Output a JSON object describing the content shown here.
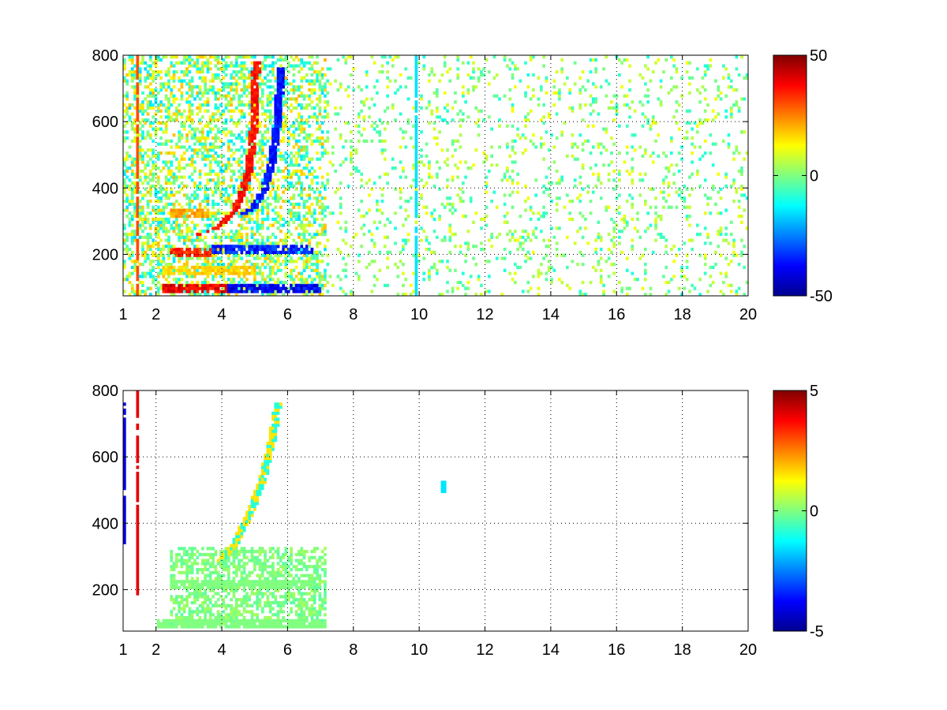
{
  "chart_data": [
    {
      "type": "heatmap",
      "title": "",
      "xlabel": "",
      "ylabel": "",
      "xlim": [
        1,
        20
      ],
      "ylim": [
        75,
        800
      ],
      "grid": true,
      "colormap": "jet",
      "xticks": [
        1,
        2,
        4,
        6,
        8,
        10,
        12,
        14,
        16,
        18,
        20
      ],
      "xtick_labels": [
        "1",
        "2",
        "4",
        "6",
        "8",
        "10",
        "12",
        "14",
        "16",
        "18",
        "20"
      ],
      "yticks": [
        200,
        400,
        600,
        800
      ],
      "ytick_labels": [
        "200",
        "400",
        "600",
        "800"
      ],
      "colorbar": {
        "min": -50,
        "max": 50,
        "ticks": [
          50,
          0,
          -50
        ],
        "tick_labels": [
          "50",
          "0",
          "-50"
        ]
      },
      "features": [
        {
          "kind": "curve",
          "sign": "positive",
          "value": 40,
          "points": [
            [
              3.3,
              260
            ],
            [
              3.8,
              280
            ],
            [
              4.3,
              320
            ],
            [
              4.6,
              380
            ],
            [
              4.8,
              450
            ],
            [
              4.95,
              550
            ],
            [
              5.0,
              650
            ],
            [
              5.05,
              780
            ]
          ]
        },
        {
          "kind": "curve",
          "sign": "negative",
          "value": -40,
          "points": [
            [
              4.6,
              320
            ],
            [
              5.0,
              345
            ],
            [
              5.3,
              400
            ],
            [
              5.5,
              470
            ],
            [
              5.65,
              560
            ],
            [
              5.75,
              680
            ],
            [
              5.8,
              760
            ]
          ]
        },
        {
          "kind": "band",
          "value": 45,
          "y": 100,
          "x": [
            2.2,
            4.2
          ]
        },
        {
          "kind": "band",
          "value": -45,
          "y": 100,
          "x": [
            4.2,
            7.0
          ]
        },
        {
          "kind": "band",
          "value": 40,
          "y": 210,
          "x": [
            2.4,
            3.7
          ]
        },
        {
          "kind": "band",
          "value": -40,
          "y": 212,
          "x": [
            3.7,
            6.8
          ]
        },
        {
          "kind": "band",
          "value": 25,
          "y": 325,
          "x": [
            2.4,
            3.6
          ]
        },
        {
          "kind": "band",
          "value": 20,
          "y": 150,
          "x": [
            2.2,
            5.0
          ]
        },
        {
          "kind": "vline",
          "value": -15,
          "x": 9.9,
          "y": [
            75,
            800
          ]
        },
        {
          "kind": "vline",
          "value": 30,
          "x": 1.45,
          "y": [
            75,
            800
          ]
        }
      ]
    },
    {
      "type": "heatmap",
      "title": "",
      "xlabel": "",
      "ylabel": "",
      "xlim": [
        1,
        20
      ],
      "ylim": [
        75,
        800
      ],
      "grid": true,
      "colormap": "jet",
      "xticks": [
        1,
        2,
        4,
        6,
        8,
        10,
        12,
        14,
        16,
        18,
        20
      ],
      "xtick_labels": [
        "1",
        "2",
        "4",
        "6",
        "8",
        "10",
        "12",
        "14",
        "16",
        "18",
        "20"
      ],
      "yticks": [
        200,
        400,
        600,
        800
      ],
      "ytick_labels": [
        "200",
        "400",
        "600",
        "800"
      ],
      "colorbar": {
        "min": -5,
        "max": 5,
        "ticks": [
          5,
          0,
          -5
        ],
        "tick_labels": [
          "5",
          "0",
          "-5"
        ]
      },
      "features": [
        {
          "kind": "region",
          "value": 0,
          "x": [
            2.4,
            7.2
          ],
          "y": [
            80,
            330
          ]
        },
        {
          "kind": "band",
          "value": 0,
          "y": 100,
          "x": [
            2.0,
            7.2
          ]
        },
        {
          "kind": "band",
          "value": 0,
          "y": 215,
          "x": [
            2.4,
            6.8
          ]
        },
        {
          "kind": "curve",
          "sign": "mixed",
          "value": 1.5,
          "points": [
            [
              3.8,
              280
            ],
            [
              4.3,
              320
            ],
            [
              4.8,
              420
            ],
            [
              5.2,
              520
            ],
            [
              5.5,
              640
            ],
            [
              5.7,
              760
            ]
          ]
        },
        {
          "kind": "vline",
          "value": -4,
          "x": 1.05,
          "y": [
            330,
            760
          ]
        },
        {
          "kind": "vline",
          "value": 4,
          "x": 1.45,
          "y": [
            180,
            800
          ]
        },
        {
          "kind": "spot",
          "value": -1.5,
          "x": 10.75,
          "y": [
            490,
            530
          ]
        }
      ]
    }
  ]
}
